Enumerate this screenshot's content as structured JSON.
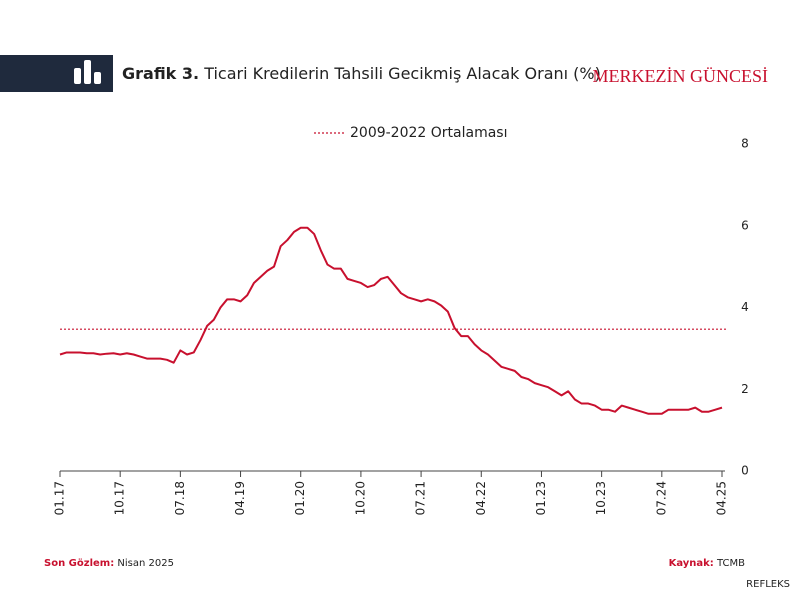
{
  "header": {
    "brand": "MERKEZİN GÜNCESİ"
  },
  "chart_data": {
    "type": "line",
    "title_label": "Grafik 3.",
    "title": "Ticari Kredilerin Tahsili Gecikmiş Alacak Oranı (%)",
    "categories": [
      "01.17",
      null,
      null,
      null,
      null,
      null,
      null,
      null,
      null,
      "10.17",
      null,
      null,
      null,
      null,
      null,
      null,
      null,
      null,
      "07.18",
      null,
      null,
      null,
      null,
      null,
      null,
      null,
      null,
      "04.19",
      null,
      null,
      null,
      null,
      null,
      null,
      null,
      null,
      "01.20",
      null,
      null,
      null,
      null,
      null,
      null,
      null,
      null,
      "10.20",
      null,
      null,
      null,
      null,
      null,
      null,
      null,
      null,
      "07.21",
      null,
      null,
      null,
      null,
      null,
      null,
      null,
      null,
      "04.22",
      null,
      null,
      null,
      null,
      null,
      null,
      null,
      null,
      "01.23",
      null,
      null,
      null,
      null,
      null,
      null,
      null,
      null,
      "10.23",
      null,
      null,
      null,
      null,
      null,
      null,
      null,
      null,
      "07.24",
      null,
      null,
      null,
      null,
      null,
      null,
      null,
      null,
      "04.25"
    ],
    "series": [
      {
        "color": "#c8102e",
        "values": [
          2.85,
          2.9,
          2.9,
          2.9,
          2.88,
          2.88,
          2.85,
          2.87,
          2.88,
          2.85,
          2.88,
          2.85,
          2.8,
          2.75,
          2.75,
          2.75,
          2.72,
          2.65,
          2.95,
          2.85,
          2.9,
          3.2,
          3.55,
          3.7,
          4.0,
          4.2,
          4.2,
          4.15,
          4.3,
          4.6,
          4.75,
          4.9,
          5.0,
          5.5,
          5.65,
          5.85,
          5.95,
          5.95,
          5.8,
          5.4,
          5.05,
          4.95,
          4.95,
          4.7,
          4.65,
          4.6,
          4.5,
          4.55,
          4.7,
          4.75,
          4.55,
          4.35,
          4.25,
          4.2,
          4.15,
          4.2,
          4.15,
          4.05,
          3.9,
          3.5,
          3.3,
          3.3,
          3.1,
          2.95,
          2.85,
          2.7,
          2.55,
          2.5,
          2.45,
          2.3,
          2.25,
          2.15,
          2.1,
          2.05,
          1.95,
          1.85,
          1.95,
          1.75,
          1.65,
          1.65,
          1.6,
          1.5,
          1.5,
          1.45,
          1.6,
          1.55,
          1.5,
          1.45,
          1.4,
          1.4,
          1.4,
          1.5,
          1.5,
          1.5,
          1.5,
          1.55,
          1.45,
          1.45,
          1.5,
          1.55
        ]
      }
    ],
    "reference_line": {
      "name": "2009-2022 Ortalaması",
      "value": 3.47,
      "color": "#c8102e"
    },
    "ylim": [
      0,
      8
    ],
    "yticks": [
      0,
      2,
      4,
      6,
      8
    ],
    "y_axis_side": "right",
    "grid": false
  },
  "footer": {
    "last_label": "Son Gözlem:",
    "last_value": "Nisan 2025",
    "source_label": "Kaynak:",
    "source_value": "TCMB",
    "credit": "REFLEKS"
  }
}
